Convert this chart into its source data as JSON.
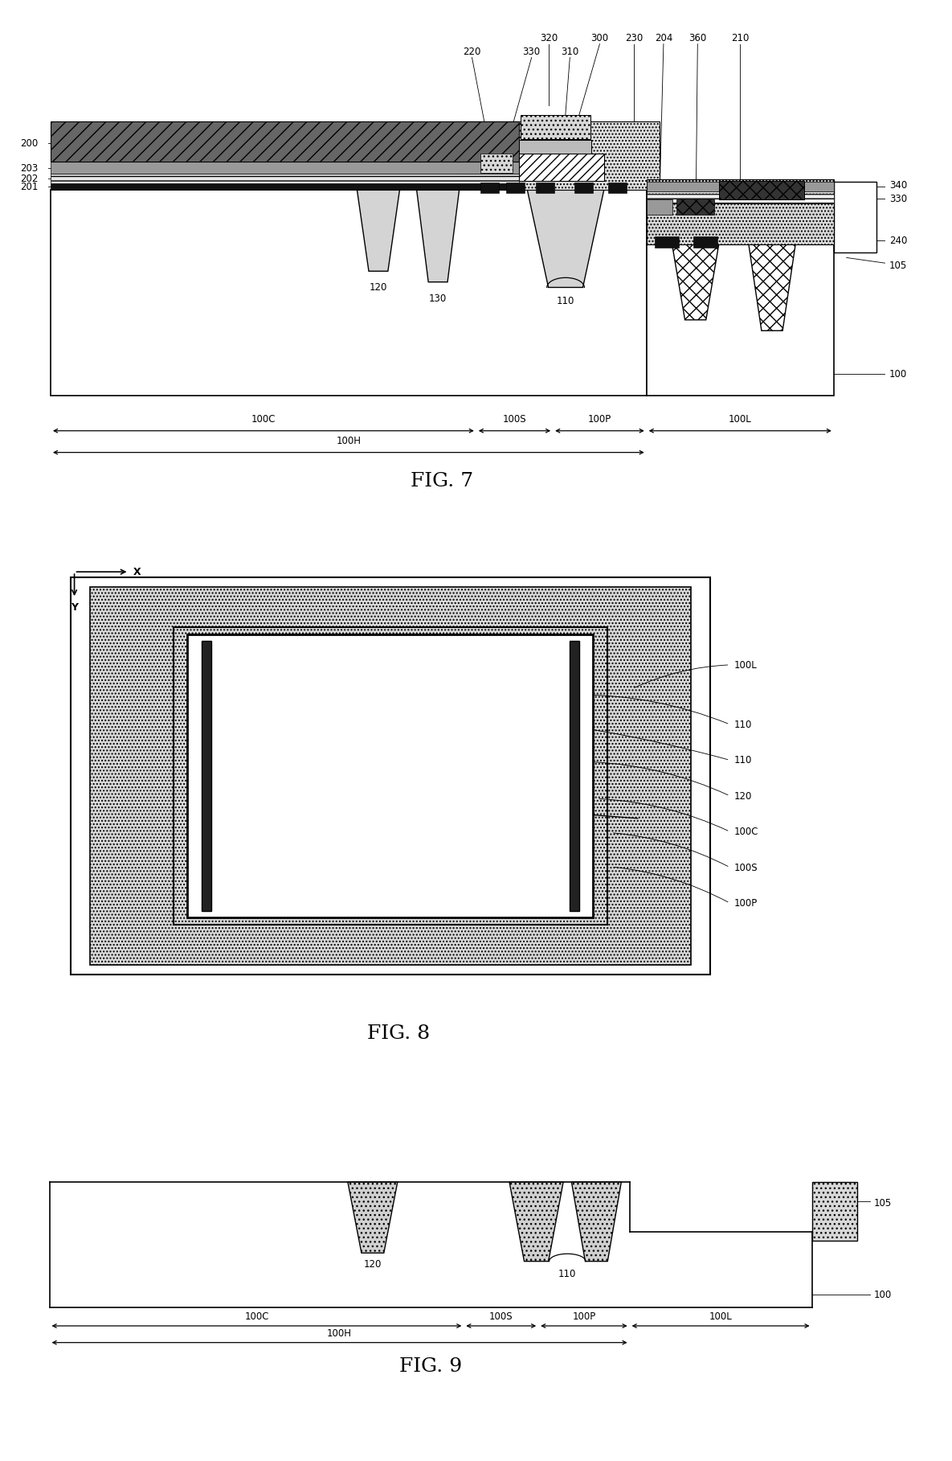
{
  "fig7_title": "FIG. 7",
  "fig8_title": "FIG. 8",
  "fig9_title": "FIG. 9",
  "bg_color": "#ffffff",
  "lc": "#000000",
  "fs_label": 8.5,
  "fs_title": 18
}
